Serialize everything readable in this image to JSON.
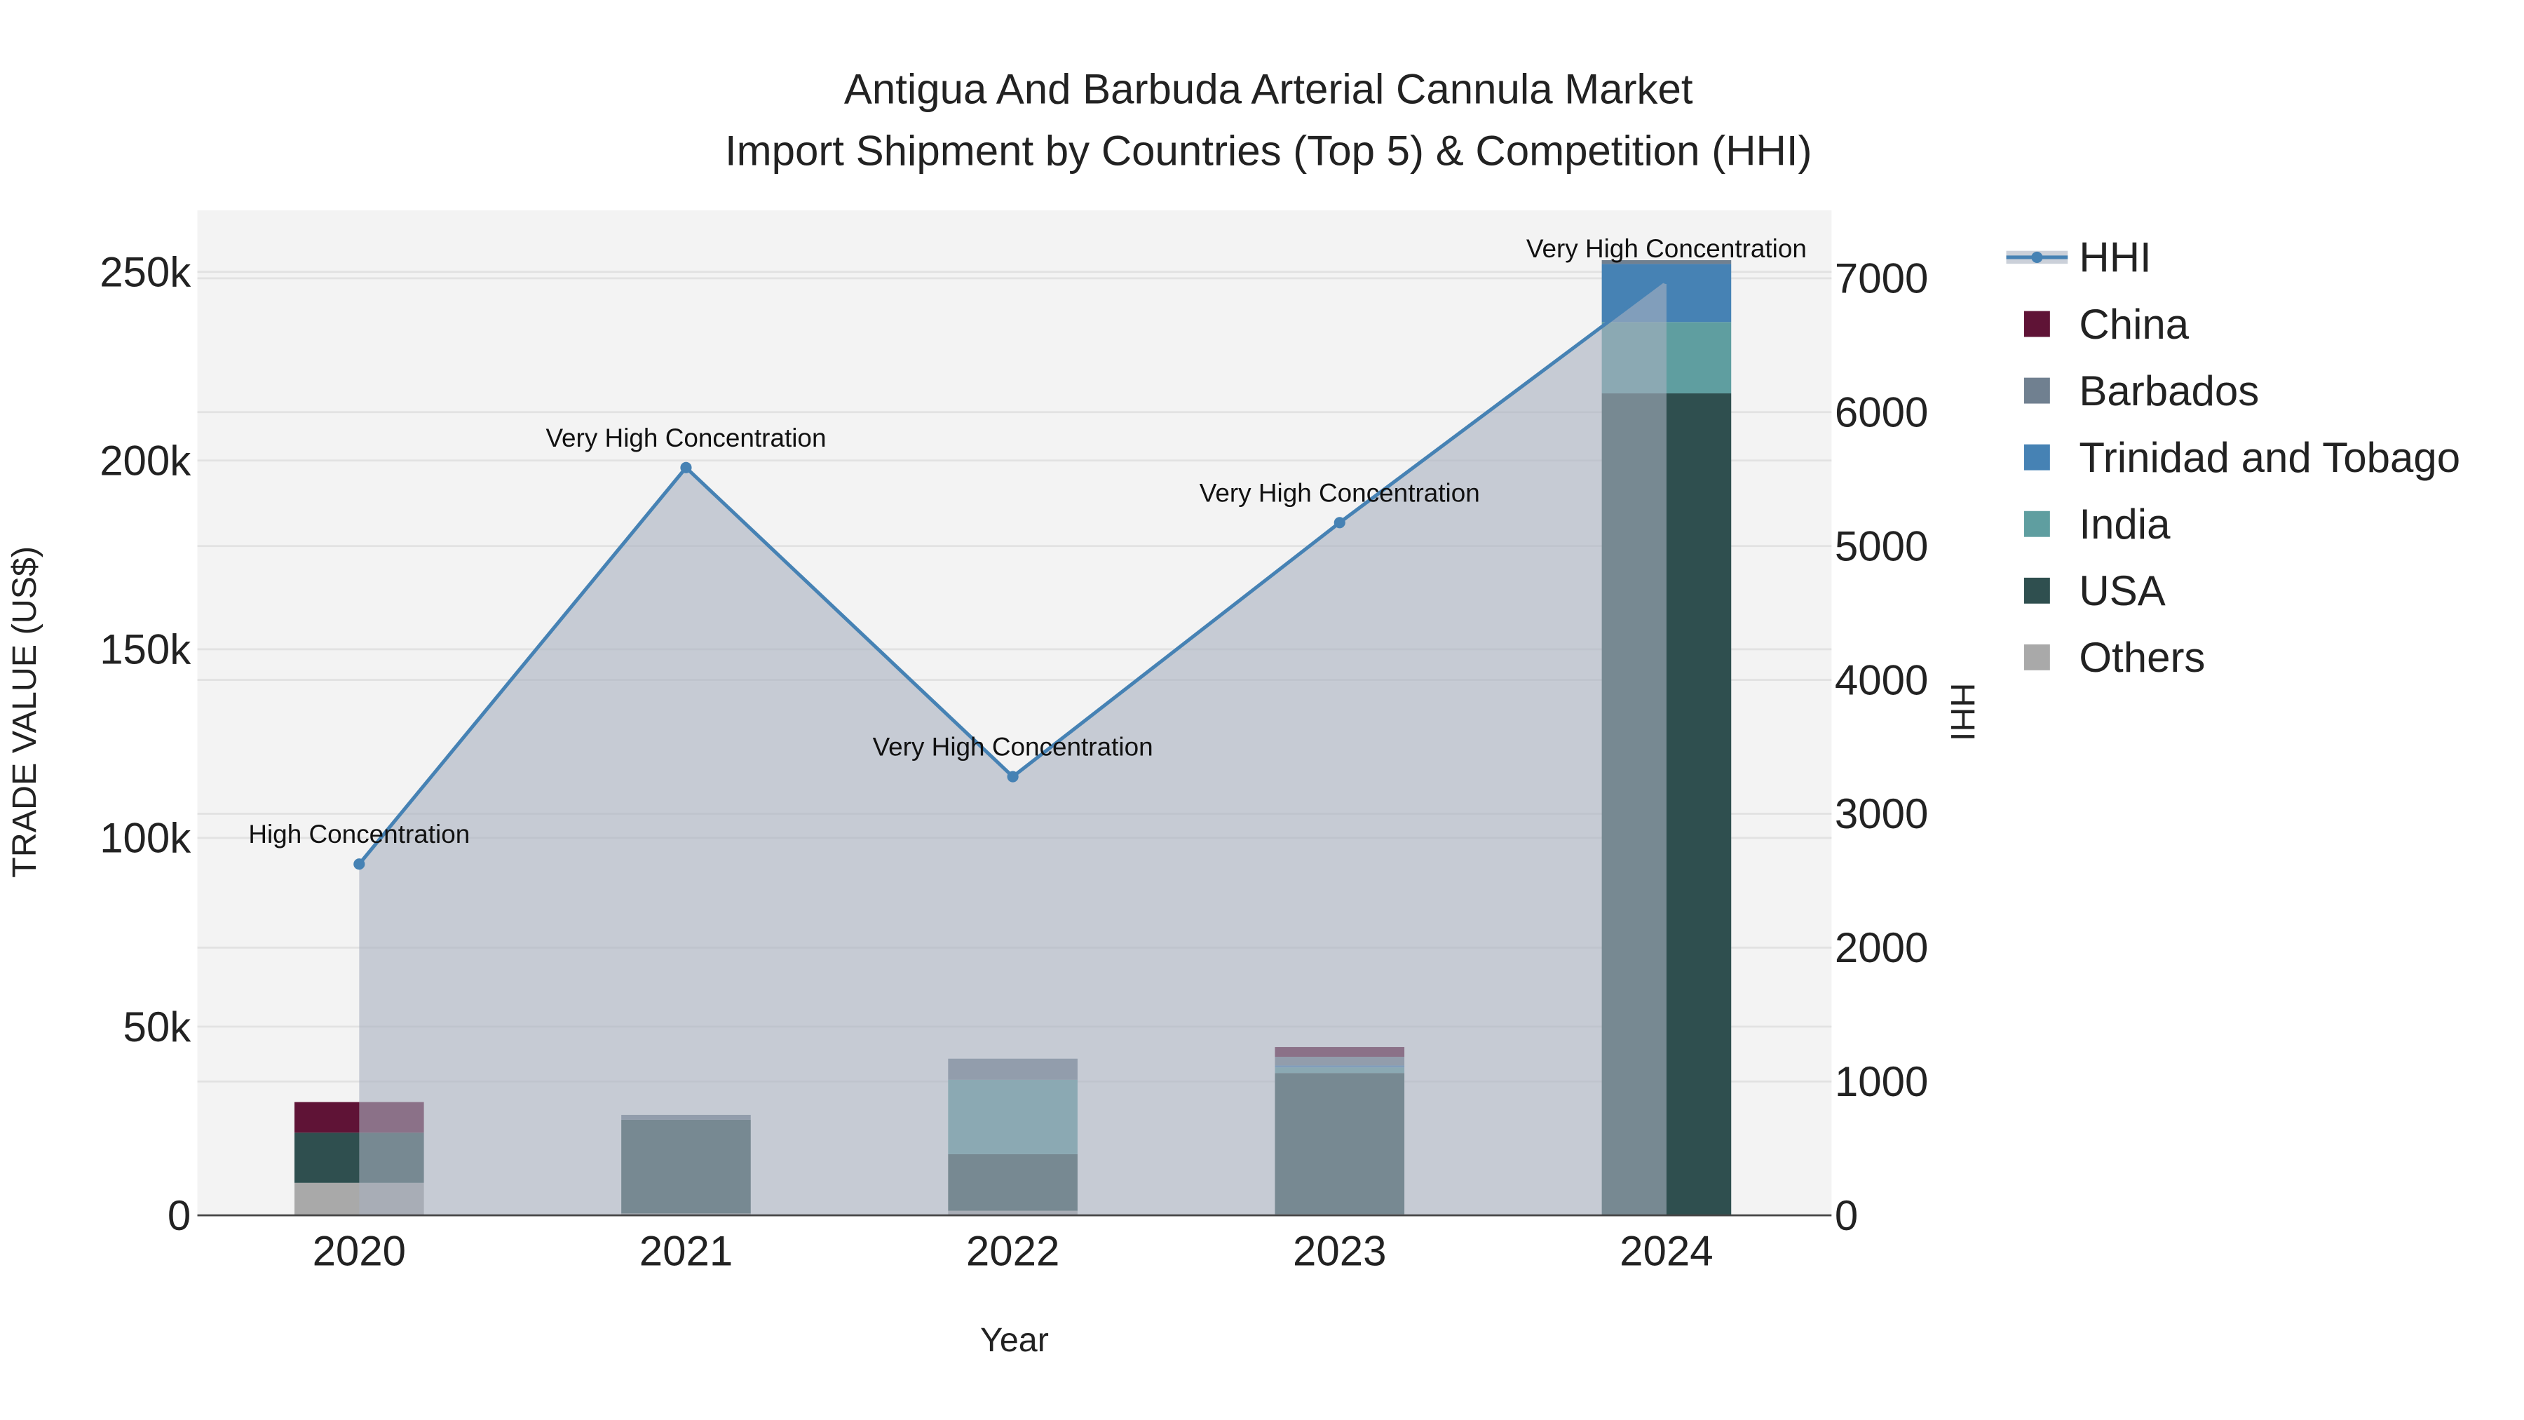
{
  "chart_data": {
    "type": "bar",
    "title_line1": "Antigua And Barbuda Arterial Cannula Market",
    "title_line2": "Import Shipment by Countries (Top 5) & Competition (HHI)",
    "xlabel": "Year",
    "ylabel": "TRADE VALUE (US$)",
    "y2label": "HHI",
    "categories": [
      "2020",
      "2021",
      "2022",
      "2023",
      "2024"
    ],
    "ylim": [
      0,
      265000
    ],
    "y2lim": [
      0,
      7500
    ],
    "yticks": [
      0,
      50000,
      100000,
      150000,
      200000,
      250000
    ],
    "ytick_labels": [
      "0",
      "50k",
      "100k",
      "150k",
      "200k",
      "250k"
    ],
    "y2ticks": [
      0,
      1000,
      2000,
      3000,
      4000,
      5000,
      6000,
      7000
    ],
    "y2tick_labels": [
      "0",
      "1000",
      "2000",
      "3000",
      "4000",
      "5000",
      "6000",
      "7000"
    ],
    "stacking": "stacked",
    "series": [
      {
        "name": "Others",
        "color": "#a9a9a9",
        "values": [
          8600,
          500,
          1200,
          300,
          0
        ]
      },
      {
        "name": "USA",
        "color": "#2f4f4f",
        "values": [
          13300,
          24800,
          15000,
          37400,
          217800
        ]
      },
      {
        "name": "India",
        "color": "#5f9ea0",
        "values": [
          0,
          0,
          19700,
          1500,
          18900
        ]
      },
      {
        "name": "Trinidad and Tobago",
        "color": "#4682b4",
        "values": [
          0,
          0,
          0,
          500,
          15400
        ]
      },
      {
        "name": "Barbados",
        "color": "#708090",
        "values": [
          0,
          1300,
          5600,
          2300,
          1000
        ]
      },
      {
        "name": "China",
        "color": "#5f1336",
        "values": [
          8100,
          0,
          0,
          2600,
          0
        ]
      }
    ],
    "hhi": {
      "name": "HHI",
      "color": "#4682b4",
      "values": [
        2624,
        5586,
        3277,
        5175,
        7000
      ],
      "annotations": [
        "High Concentration",
        "Very High Concentration",
        "Very High Concentration",
        "Very High Concentration",
        "Very High Concentration"
      ]
    },
    "legend_order": [
      "HHI",
      "China",
      "Barbados",
      "Trinidad and Tobago",
      "India",
      "USA",
      "Others"
    ],
    "legend_placement": "right",
    "grid": true
  }
}
